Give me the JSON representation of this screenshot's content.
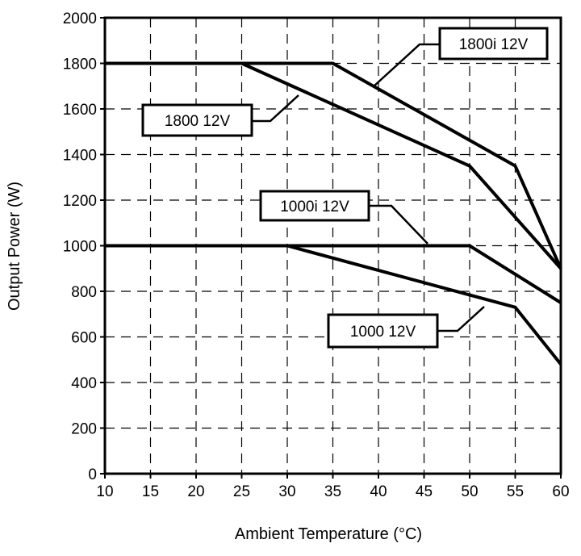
{
  "chart_data": {
    "type": "line",
    "title": "",
    "xlabel": "Ambient Temperature (°C)",
    "ylabel": "Output Power (W)",
    "xlim": [
      10,
      60
    ],
    "ylim": [
      0,
      2000
    ],
    "xticks": [
      "10",
      "15",
      "20",
      "25",
      "30",
      "35",
      "40",
      "45",
      "50",
      "55",
      "60"
    ],
    "yticks": [
      "0",
      "200",
      "400",
      "600",
      "800",
      "1000",
      "1200",
      "1400",
      "1600",
      "1800",
      "2000"
    ],
    "grid": true,
    "series": [
      {
        "name": "1800i 12V",
        "points": [
          [
            10,
            1800
          ],
          [
            35,
            1800
          ],
          [
            55,
            1350
          ],
          [
            60,
            900
          ]
        ]
      },
      {
        "name": "1800 12V",
        "points": [
          [
            10,
            1800
          ],
          [
            25,
            1800
          ],
          [
            50,
            1350
          ],
          [
            60,
            900
          ]
        ]
      },
      {
        "name": "1000i 12V",
        "points": [
          [
            10,
            1000
          ],
          [
            50,
            1000
          ],
          [
            60,
            750
          ]
        ]
      },
      {
        "name": "1000 12V",
        "points": [
          [
            10,
            1000
          ],
          [
            30,
            1000
          ],
          [
            55,
            730
          ],
          [
            60,
            480
          ]
        ]
      }
    ]
  }
}
